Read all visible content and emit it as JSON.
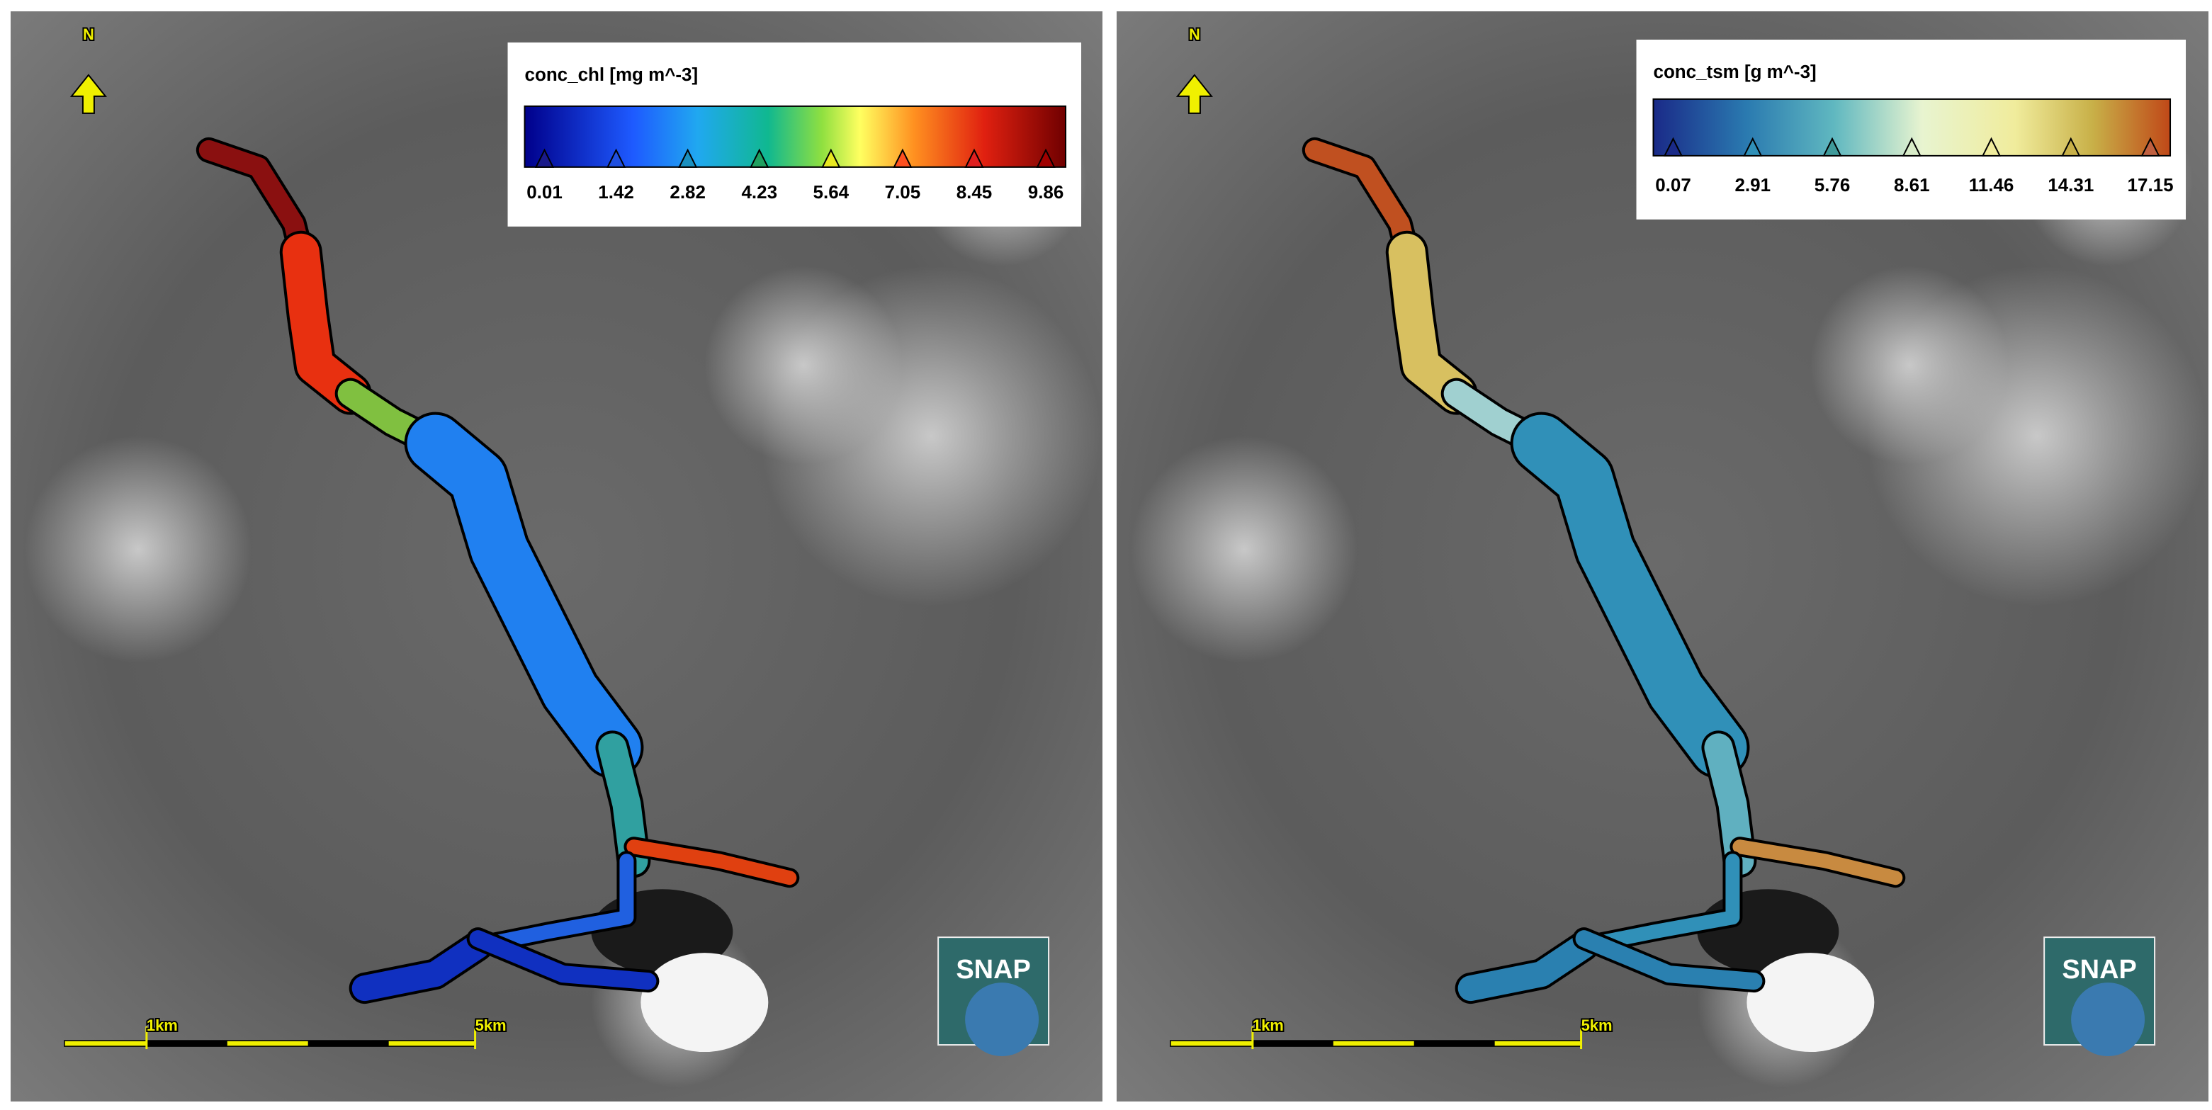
{
  "panels": [
    {
      "legend": {
        "title": "conc_chl [mg m^-3]",
        "ticks": [
          "0.01",
          "1.42",
          "2.82",
          "4.23",
          "5.64",
          "7.05",
          "8.45",
          "9.86"
        ]
      },
      "north": "N",
      "scale_labels": [
        "1km",
        "5km"
      ],
      "logo": "SNAP"
    },
    {
      "legend": {
        "title": "conc_tsm [g m^-3]",
        "ticks": [
          "0.07",
          "2.91",
          "5.76",
          "8.61",
          "11.46",
          "14.31",
          "17.15"
        ]
      },
      "north": "N",
      "scale_labels": [
        "1km",
        "5km"
      ],
      "logo": "SNAP"
    }
  ]
}
